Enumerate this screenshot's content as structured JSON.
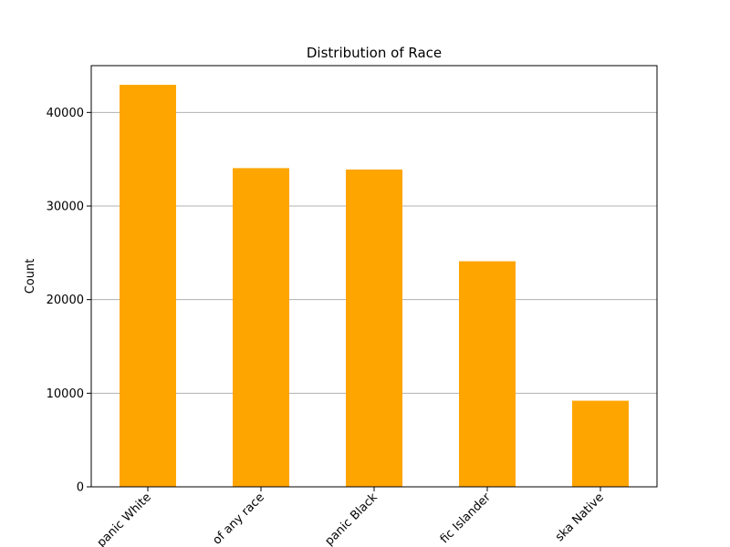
{
  "chart_data": {
    "type": "bar",
    "title": "Distribution of Race",
    "xlabel": "",
    "ylabel": "Count",
    "categories": [
      "panic White",
      "of any race",
      "panic Black",
      "fic Islander",
      "ska Native"
    ],
    "values": [
      42950,
      34050,
      33900,
      24100,
      9200
    ],
    "ylim": [
      0,
      45000
    ],
    "yticks": [
      0,
      10000,
      20000,
      30000,
      40000
    ],
    "grid": "y",
    "colors": {
      "bar": "#FFA500",
      "grid": "#b0b0b0",
      "axis": "#000000"
    }
  }
}
